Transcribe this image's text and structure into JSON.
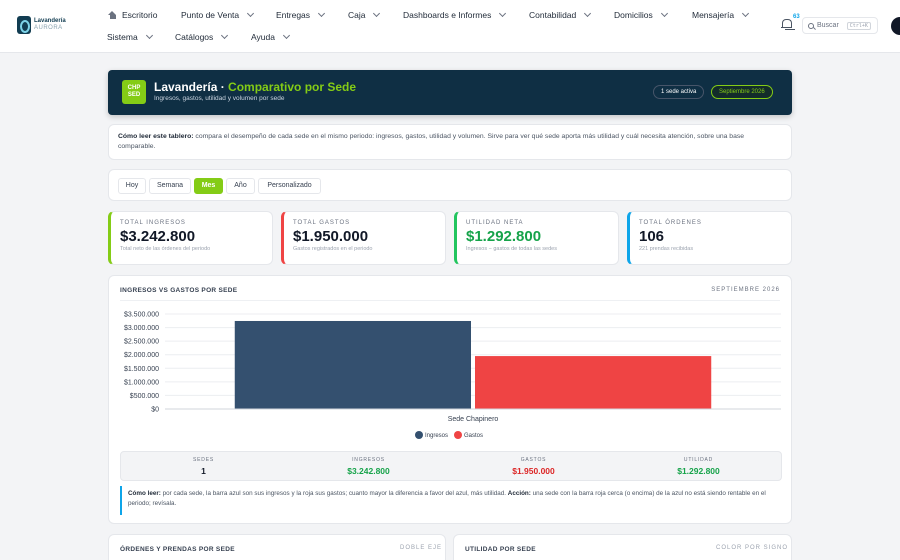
{
  "nav": {
    "logo": {
      "name": "Lavandería",
      "sub": "AURORA"
    },
    "row1": [
      {
        "label": "Escritorio",
        "icon": "home-icon",
        "chevron": false
      },
      {
        "label": "Punto de Venta",
        "chevron": true
      },
      {
        "label": "Entregas",
        "chevron": true
      },
      {
        "label": "Caja",
        "chevron": true
      },
      {
        "label": "Dashboards e Informes",
        "chevron": true
      },
      {
        "label": "Contabilidad",
        "chevron": true
      },
      {
        "label": "Domicilios",
        "chevron": true
      },
      {
        "label": "Mensajería",
        "chevron": true
      }
    ],
    "row2": [
      {
        "label": "Sistema",
        "chevron": true
      },
      {
        "label": "Catálogos",
        "chevron": true
      },
      {
        "label": "Ayuda",
        "chevron": true
      }
    ],
    "notifications": "63",
    "search": {
      "placeholder": "Buscar",
      "shortcut": "Ctrl+K"
    }
  },
  "hero": {
    "badge": "CHP SED",
    "title": "Lavandería · ",
    "title_accent": "Comparativo por Sede",
    "subtitle": "Ingresos, gastos, utilidad y volumen por sede",
    "pill_sedes": "1 sede activa",
    "pill_month": "Septiembre 2026"
  },
  "info": {
    "lead": "Cómo leer este tablero:",
    "text": " compara el desempeño de cada sede en el mismo periodo: ingresos, gastos, utilidad y volumen. Sirve para ver qué sede aporta más utilidad y cuál necesita atención, sobre una base comparable."
  },
  "filters": [
    "Hoy",
    "Semana",
    "Mes",
    "Año",
    "Personalizado"
  ],
  "filters_active": "Mes",
  "kpis": [
    {
      "label": "Total Ingresos",
      "value": "$3.242.800",
      "note": "Total neto de las órdenes del periodo",
      "color": "#84cc16"
    },
    {
      "label": "Total Gastos",
      "value": "$1.950.000",
      "note": "Gastos registrados en el periodo",
      "color": "#ef4444"
    },
    {
      "label": "Utilidad Neta",
      "value": "$1.292.800",
      "note": "Ingresos − gastos de todas las sedes",
      "color": "#22c55e",
      "value_color": "#16a34a"
    },
    {
      "label": "Total Órdenes",
      "value": "106",
      "note": "221 prendas recibidas",
      "color": "#0ea5e9"
    }
  ],
  "chart_card": {
    "title": "Ingresos vs Gastos por Sede",
    "period": "Septiembre 2026"
  },
  "chart_data": {
    "type": "bar",
    "categories": [
      "Sede Chapinero"
    ],
    "series": [
      {
        "name": "Ingresos",
        "values": [
          3242800
        ],
        "color": "#34506f"
      },
      {
        "name": "Gastos",
        "values": [
          1950000
        ],
        "color": "#ef4444"
      }
    ],
    "ylim": [
      0,
      3500000
    ],
    "yticks": [
      "$0",
      "$500.000",
      "$1.000.000",
      "$1.500.000",
      "$2.000.000",
      "$2.500.000",
      "$3.000.000",
      "$3.500.000"
    ],
    "ytick_values": [
      0,
      500000,
      1000000,
      1500000,
      2000000,
      2500000,
      3000000,
      3500000
    ],
    "grid": true,
    "legend": "bottom"
  },
  "summary": [
    {
      "label": "Sedes",
      "value": "1",
      "color": "#111827"
    },
    {
      "label": "Ingresos",
      "value": "$3.242.800",
      "color": "#16a34a"
    },
    {
      "label": "Gastos",
      "value": "$1.950.000",
      "color": "#dc2626"
    },
    {
      "label": "Utilidad",
      "value": "$1.292.800",
      "color": "#16a34a"
    }
  ],
  "howto": {
    "lead": "Cómo leer:",
    "text": " por cada sede, la barra azul son sus ingresos y la roja sus gastos; cuanto mayor la diferencia a favor del azul, más utilidad. ",
    "action_lead": "Acción:",
    "action_text": " una sede con la barra roja cerca (o encima) de la azul no está siendo rentable en el periodo; revísala."
  },
  "bottom": {
    "left_title": "Órdenes y prendas por sede",
    "left_tag": "Doble eje",
    "right_title": "Utilidad por sede",
    "right_tag": "Color por signo"
  }
}
